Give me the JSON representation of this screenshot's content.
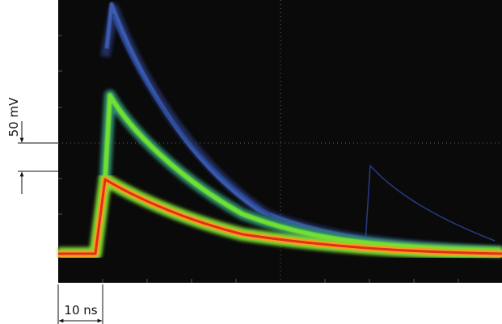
{
  "scale_bars": {
    "vertical": "50 mV",
    "horizontal": "10 ns"
  }
}
